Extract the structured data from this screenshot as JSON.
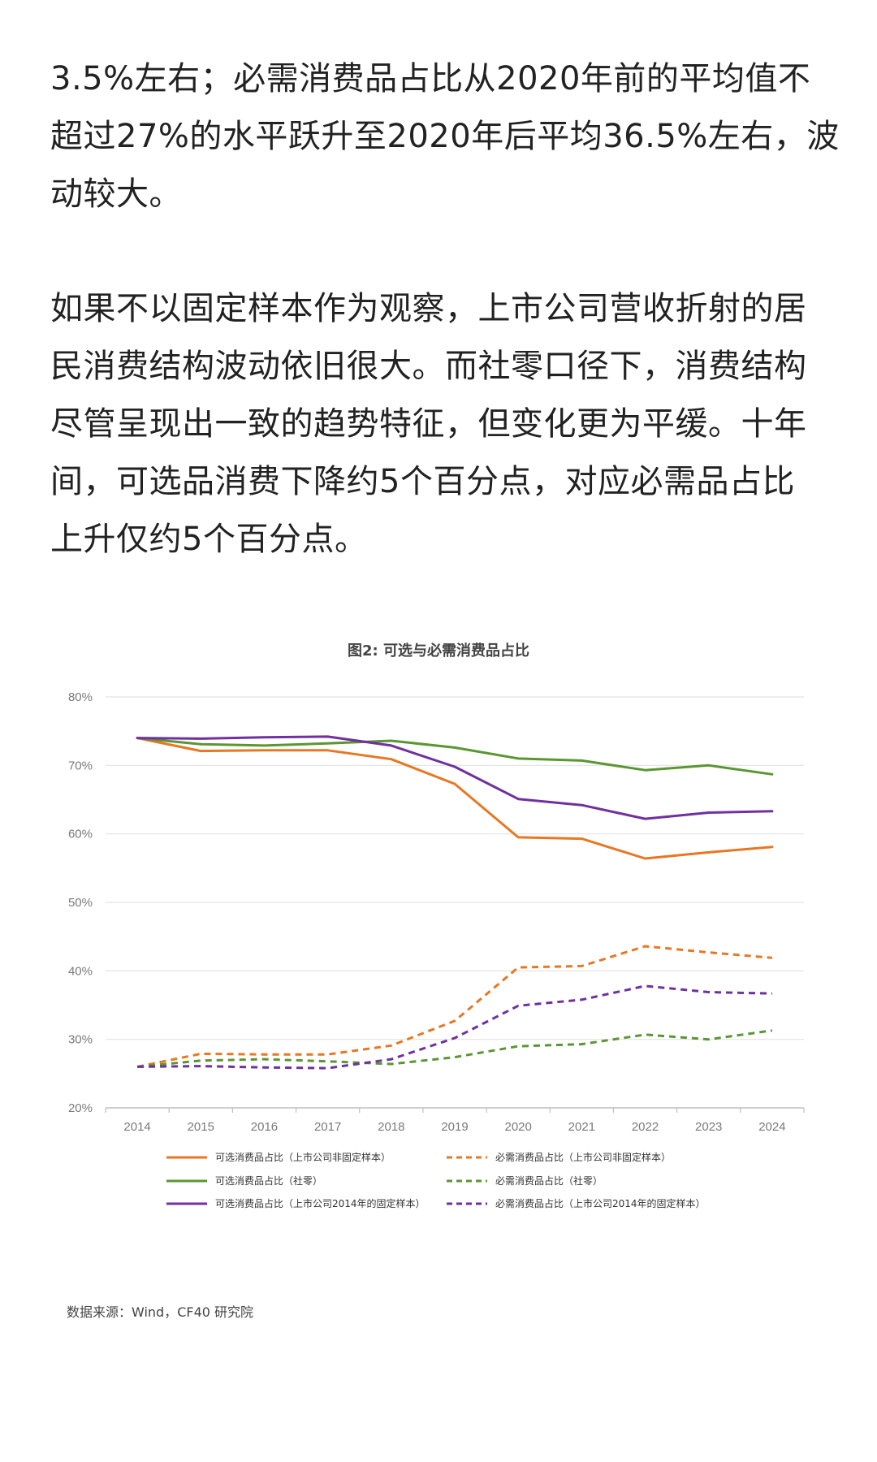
{
  "article": {
    "paragraph_1": [
      "3.5%左右；必需消费品占比从2020年前的平均值不",
      "超过27%的水平跃升至2020年后平均36.5%左右，波",
      "动较大。"
    ],
    "paragraph_2": [
      "如果不以固定样本作为观察，上市公司营收折射的居",
      "民消费结构波动依旧很大。而社零口径下，消费结构",
      "尽管呈现出一致的趋势特征，但变化更为平缓。十年",
      "间，可选品消费下降约5个百分点，对应必需品占比",
      "上升仅约5个百分点。"
    ]
  },
  "chart_data": {
    "type": "line",
    "title": "图2: 可选与必需消费品占比",
    "xlabel": "",
    "ylabel": "",
    "x": [
      "2014",
      "2015",
      "2016",
      "2017",
      "2018",
      "2019",
      "2020",
      "2021",
      "2022",
      "2023",
      "2024"
    ],
    "ylim": [
      20,
      80
    ],
    "yticks": [
      "20%",
      "30%",
      "40%",
      "50%",
      "60%",
      "70%",
      "80%"
    ],
    "grid": "horizontal",
    "legend_position": "bottom",
    "series": [
      {
        "name": "可选消费品占比（上市公司非固定样本）",
        "color": "#e87722",
        "dashed": false,
        "values": [
          74,
          72.1,
          72.2,
          72.2,
          70.9,
          67.3,
          59.5,
          59.3,
          56.4,
          57.3,
          58.1
        ]
      },
      {
        "name": "必需消费品占比（上市公司非固定样本）",
        "color": "#e87722",
        "dashed": true,
        "values": [
          26,
          27.9,
          27.8,
          27.8,
          29.1,
          32.7,
          40.5,
          40.7,
          43.6,
          42.7,
          41.9
        ]
      },
      {
        "name": "可选消费品占比（社零）",
        "color": "#5a9632",
        "dashed": false,
        "values": [
          74,
          73.1,
          72.9,
          73.2,
          73.6,
          72.6,
          71,
          70.7,
          69.3,
          70,
          68.7
        ]
      },
      {
        "name": "必需消费品占比（社零）",
        "color": "#5a9632",
        "dashed": true,
        "values": [
          26,
          26.9,
          27.1,
          26.8,
          26.4,
          27.4,
          29,
          29.3,
          30.7,
          30,
          31.3
        ]
      },
      {
        "name": "可选消费品占比（上市公司2014年的固定样本）",
        "color": "#7030a0",
        "dashed": false,
        "values": [
          74,
          73.9,
          74.1,
          74.2,
          72.9,
          69.8,
          65.1,
          64.2,
          62.2,
          63.1,
          63.3
        ]
      },
      {
        "name": "必需消费品占比（上市公司2014年的固定样本）",
        "color": "#7030a0",
        "dashed": true,
        "values": [
          26,
          26.1,
          25.9,
          25.8,
          27.1,
          30.2,
          34.9,
          35.8,
          37.8,
          36.9,
          36.7
        ]
      }
    ],
    "source": "数据来源：Wind，CF40 研究院"
  }
}
